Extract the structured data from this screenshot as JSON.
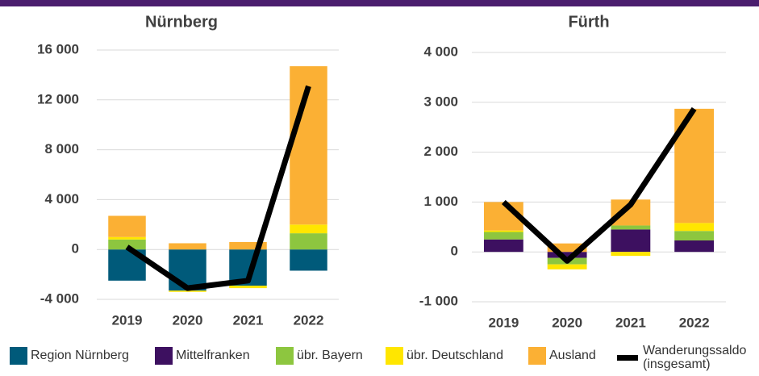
{
  "legend": [
    {
      "name": "Region Nürnberg",
      "color": "#005a7a"
    },
    {
      "name": "Mittelfranken",
      "color": "#3d1060"
    },
    {
      "name": "übr. Bayern",
      "color": "#8dc63f"
    },
    {
      "name": "übr. Deutschland",
      "color": "#ffe600"
    },
    {
      "name": "Ausland",
      "color": "#fbb034"
    },
    {
      "name": "Wanderungssaldo (insgesamt)",
      "color": "#000000"
    }
  ],
  "chart_data": [
    {
      "type": "bar",
      "stacked": true,
      "title": "Nürnberg",
      "categories": [
        "2019",
        "2020",
        "2021",
        "2022"
      ],
      "ylim": [
        -4500,
        16500
      ],
      "yticks": [
        {
          "value": -4000,
          "label": "-4 000"
        },
        0,
        {
          "value": 4000,
          "label": "4 000"
        },
        {
          "value": 8000,
          "label": "8 000"
        },
        {
          "value": 12000,
          "label": "12 000"
        },
        {
          "value": 16000,
          "label": "16 000"
        }
      ],
      "grid": true,
      "series": [
        {
          "values": [
            -2500,
            -3300,
            -2900,
            -1700
          ]
        },
        {
          "values": [
            0,
            0,
            0,
            0
          ]
        },
        {
          "values": [
            800,
            0,
            0,
            1300
          ]
        },
        {
          "values": [
            200,
            -100,
            -200,
            700
          ]
        },
        {
          "values": [
            1700,
            500,
            600,
            12700
          ]
        }
      ],
      "line": {
        "values": [
          200,
          -3100,
          -2500,
          13100
        ]
      }
    },
    {
      "type": "bar",
      "stacked": true,
      "title": "Fürth",
      "categories": [
        "2019",
        "2020",
        "2021",
        "2022"
      ],
      "ylim": [
        -1100,
        4100
      ],
      "yticks": [
        {
          "value": -1000,
          "label": "-1 000"
        },
        0,
        {
          "value": 1000,
          "label": "1 000"
        },
        {
          "value": 2000,
          "label": "2 000"
        },
        {
          "value": 3000,
          "label": "3 000"
        },
        {
          "value": 4000,
          "label": "4 000"
        }
      ],
      "grid": true,
      "series": [
        {
          "values": [
            0,
            0,
            0,
            0
          ]
        },
        {
          "values": [
            250,
            -120,
            450,
            230
          ]
        },
        {
          "values": [
            150,
            -130,
            80,
            190
          ]
        },
        {
          "values": [
            30,
            -100,
            -80,
            160
          ]
        },
        {
          "values": [
            570,
            170,
            520,
            2290
          ]
        }
      ],
      "line": {
        "values": [
          1000,
          -180,
          950,
          2870
        ]
      }
    }
  ]
}
